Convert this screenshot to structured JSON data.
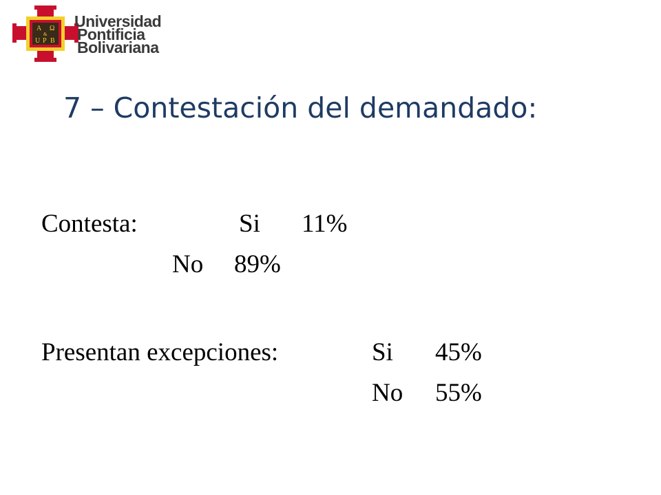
{
  "logo": {
    "shield_letters": [
      "A",
      "Ω",
      "&",
      "U",
      "P",
      "B"
    ],
    "lines": [
      "Universidad",
      "Pontificia",
      "Bolivariana"
    ]
  },
  "title": "7 – Contestación del demandado:",
  "rows": [
    [
      "Contesta:",
      "Si",
      "11%"
    ],
    [
      "No",
      "89%"
    ],
    [
      "Presentan excepciones:",
      "Si",
      "45%"
    ],
    [
      "No",
      "55%"
    ]
  ]
}
